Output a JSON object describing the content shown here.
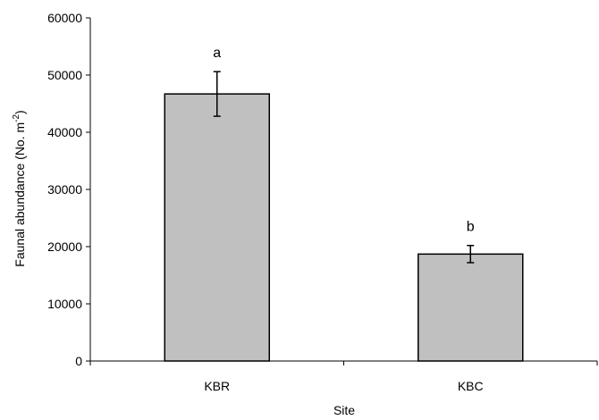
{
  "chart_data": {
    "type": "bar",
    "categories": [
      "KBR",
      "KBC"
    ],
    "values": [
      46700,
      18700
    ],
    "error": [
      3900,
      1500
    ],
    "significance_letters": [
      "a",
      "b"
    ],
    "xlabel": "Site",
    "ylabel_prefix": "Faunal abundance (No. m",
    "ylabel_sup": "-2",
    "ylabel_suffix": ")",
    "ylim": [
      0,
      60000
    ],
    "yticks": [
      0,
      10000,
      20000,
      30000,
      40000,
      50000,
      60000
    ],
    "ytick_labels": [
      "0",
      "10000",
      "20000",
      "30000",
      "40000",
      "50000",
      "60000"
    ],
    "grid": false,
    "legend": "none",
    "bar_color": "#c0c0c0",
    "bar_edge_color": "#000000"
  }
}
